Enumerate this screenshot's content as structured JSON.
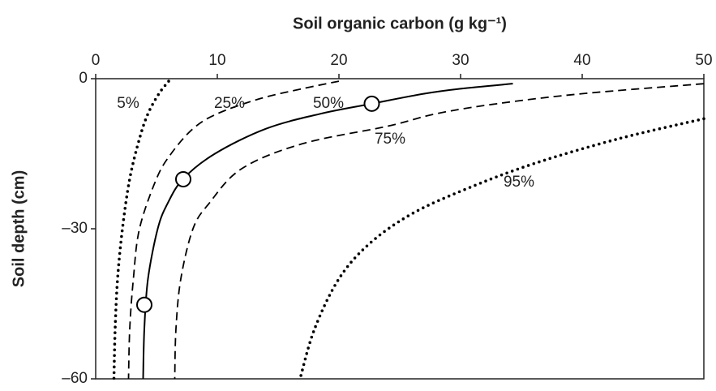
{
  "chart_data": {
    "type": "line",
    "title": "Soil organic carbon (g kg⁻¹)",
    "y_label": "Soil depth (cm)",
    "xlim": [
      0,
      50
    ],
    "xticks": [
      0,
      10,
      20,
      30,
      40,
      50
    ],
    "ylim": [
      -60,
      0
    ],
    "yticks": [
      {
        "value": 0,
        "label": "0"
      },
      {
        "value": -30,
        "label": "–30"
      },
      {
        "value": -60,
        "label": "–60"
      }
    ],
    "series": [
      {
        "name": "5%",
        "style": "dotted",
        "color": "#000000",
        "x": [
          6.0,
          5.2,
          4.3,
          3.6,
          2.8,
          2.2,
          1.8,
          1.6,
          1.5
        ],
        "values": [
          -0.5,
          -3,
          -7,
          -12,
          -20,
          -30,
          -40,
          -50,
          -60
        ]
      },
      {
        "name": "25%",
        "style": "dashed",
        "color": "#000000",
        "x": [
          20,
          17,
          13.5,
          10,
          8,
          6.2,
          5,
          3.6,
          3.1,
          2.8,
          2.7
        ],
        "values": [
          -0.5,
          -2,
          -4,
          -7,
          -10,
          -15,
          -20,
          -30,
          -40,
          -50,
          -60
        ]
      },
      {
        "name": "50%",
        "style": "solid",
        "color": "#000000",
        "x": [
          34.3,
          30,
          27,
          22.7,
          18.5,
          14,
          9.8,
          7.2,
          5.9,
          5.1,
          4.3,
          4.0,
          3.9
        ],
        "values": [
          -1,
          -2,
          -3,
          -5,
          -7,
          -10,
          -15,
          -20,
          -25,
          -30,
          -40,
          -50,
          -60
        ]
      },
      {
        "name": "75%",
        "style": "dashed",
        "color": "#000000",
        "x": [
          50,
          40,
          33,
          28,
          24,
          17,
          12,
          9.3,
          8.0,
          7.0,
          6.6,
          6.5
        ],
        "values": [
          -1,
          -3,
          -5,
          -7,
          -9.5,
          -13,
          -18,
          -25,
          -30,
          -40,
          -50,
          -60
        ]
      },
      {
        "name": "95%",
        "style": "dotted",
        "color": "#000000",
        "x": [
          50,
          43,
          36,
          30.5,
          26,
          22.5,
          20,
          18,
          16.8
        ],
        "values": [
          -8,
          -12,
          -17,
          -22,
          -27,
          -33,
          -40,
          -50,
          -60
        ]
      }
    ],
    "markers": {
      "x": [
        22.7,
        7.2,
        4.0
      ],
      "values": [
        -5,
        -20.1,
        -45.2
      ]
    }
  }
}
